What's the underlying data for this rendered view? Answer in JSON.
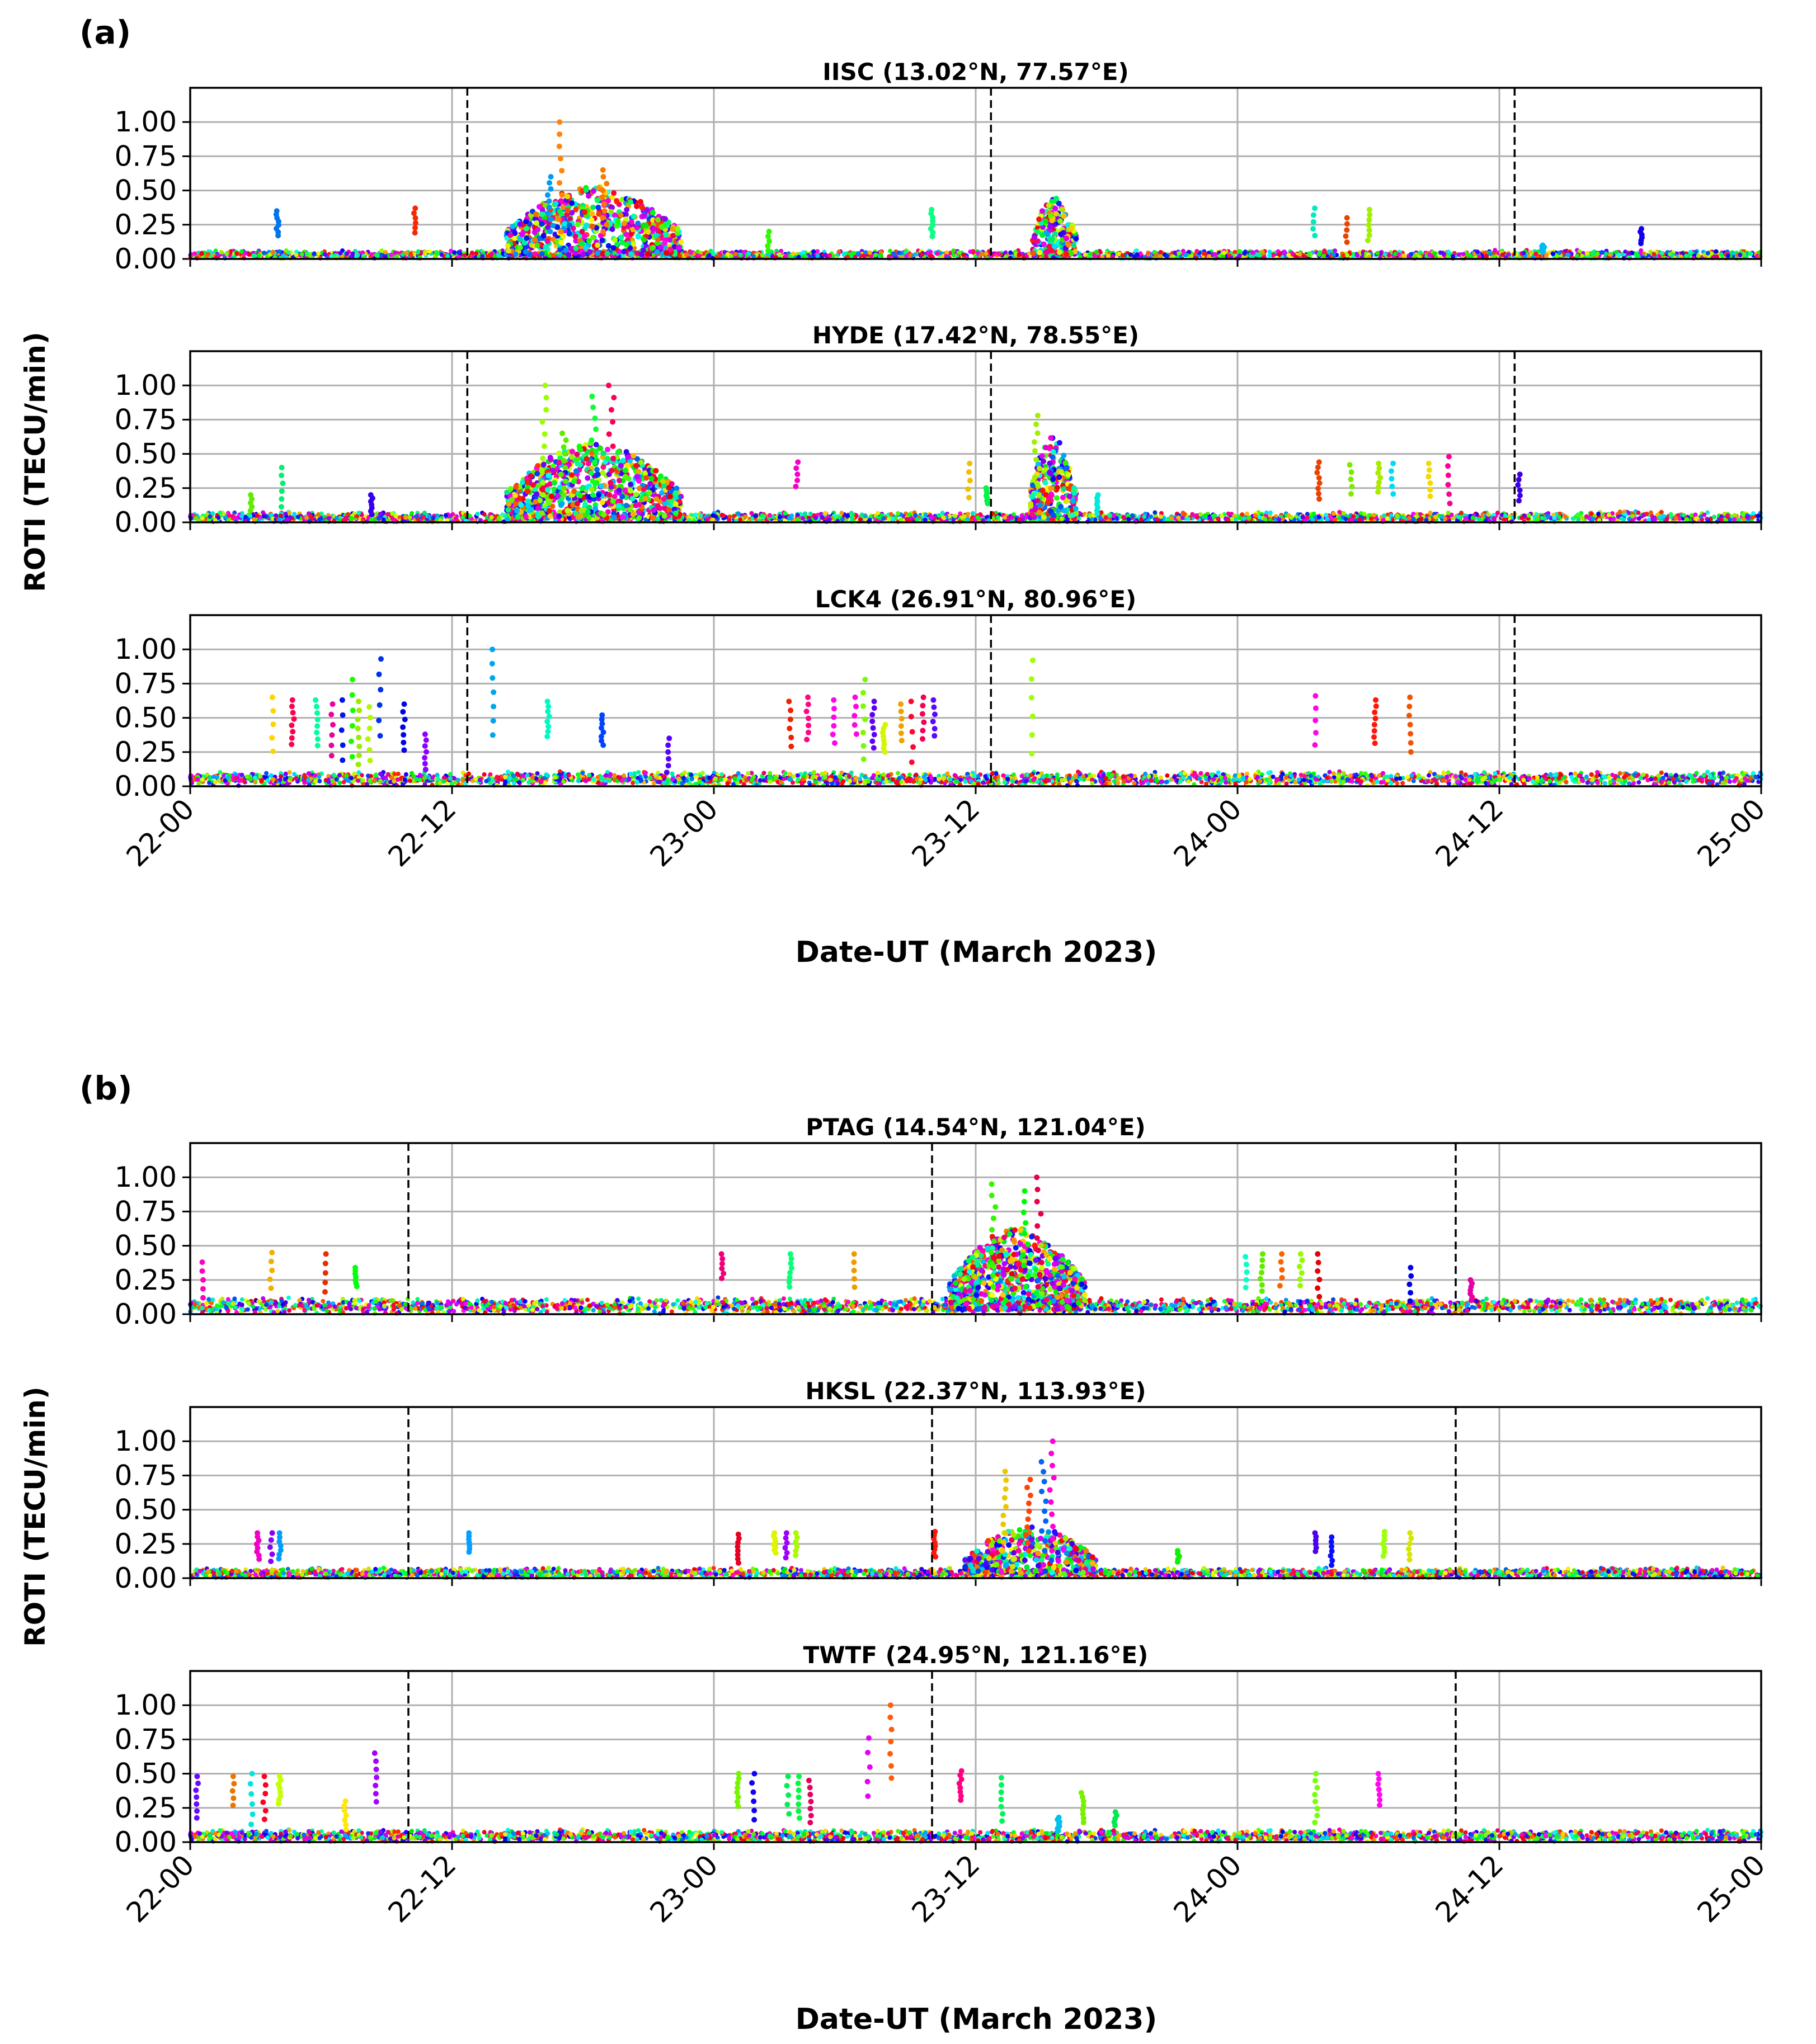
{
  "figure": {
    "panels": [
      {
        "label": "(a)",
        "ylabel": "ROTI (TECU/min)",
        "xlabel": "Date-UT (March 2023)"
      },
      {
        "label": "(b)",
        "ylabel": "ROTI (TECU/min)",
        "xlabel": "Date-UT (March 2023)"
      }
    ]
  },
  "chart_data": [
    {
      "type": "scatter",
      "panel": "a",
      "title": "IISC (13.02°N, 77.57°E)",
      "xlim": [
        0,
        72
      ],
      "ylim": [
        0,
        1.25
      ],
      "grid": true,
      "x_ticks": [
        0,
        12,
        24,
        36,
        48,
        60,
        72
      ],
      "x_tick_labels": [
        "22-00",
        "22-12",
        "23-00",
        "23-12",
        "24-00",
        "24-12",
        "25-00"
      ],
      "y_ticks": [
        0,
        0.25,
        0.5,
        0.75,
        1.0
      ],
      "y_tick_labels": [
        "0.00",
        "0.25",
        "0.50",
        "0.75",
        "1.00"
      ],
      "dashed_lines_x": [
        12.7,
        36.7,
        60.7
      ],
      "baseline": {
        "level": 0.03,
        "spread": 0.025,
        "rise": [
          [
            60,
            72,
            0.03
          ]
        ]
      },
      "bursts": [
        {
          "x": [
            14.5,
            22.5
          ],
          "max": 0.5,
          "count": 700,
          "spikes": [
            [
              17,
              1.0
            ],
            [
              19,
              0.65
            ],
            [
              16.5,
              0.6
            ]
          ]
        },
        {
          "x": [
            38.6,
            40.6
          ],
          "max": 0.42,
          "count": 220,
          "spikes": []
        }
      ],
      "columns": [
        [
          4,
          0.35
        ],
        [
          10.3,
          0.37
        ],
        [
          26.5,
          0.2
        ],
        [
          34,
          0.36
        ],
        [
          51.5,
          0.37
        ],
        [
          53,
          0.3
        ],
        [
          54,
          0.36
        ],
        [
          62,
          0.1
        ],
        [
          66.5,
          0.22
        ]
      ]
    },
    {
      "type": "scatter",
      "panel": "a",
      "title": "HYDE (17.42°N, 78.55°E)",
      "xlim": [
        0,
        72
      ],
      "ylim": [
        0,
        1.25
      ],
      "grid": true,
      "x_ticks": [
        0,
        12,
        24,
        36,
        48,
        60,
        72
      ],
      "x_tick_labels": [
        "22-00",
        "22-12",
        "23-00",
        "23-12",
        "24-00",
        "24-12",
        "25-00"
      ],
      "y_ticks": [
        0,
        0.25,
        0.5,
        0.75,
        1.0
      ],
      "y_tick_labels": [
        "0.00",
        "0.25",
        "0.50",
        "0.75",
        "1.00"
      ],
      "dashed_lines_x": [
        12.7,
        36.7,
        60.7
      ],
      "baseline": {
        "level": 0.035,
        "spread": 0.03,
        "rise": [
          [
            62,
            70,
            0.05
          ]
        ]
      },
      "bursts": [
        {
          "x": [
            14.5,
            22.5
          ],
          "max": 0.55,
          "count": 750,
          "spikes": [
            [
              16.2,
              1.0
            ],
            [
              19.3,
              1.0
            ],
            [
              17.1,
              0.65
            ],
            [
              18.5,
              0.92
            ]
          ]
        },
        {
          "x": [
            38.5,
            40.6
          ],
          "max": 0.6,
          "count": 240,
          "spikes": [
            [
              38.8,
              0.78
            ]
          ]
        }
      ],
      "columns": [
        [
          2.8,
          0.2
        ],
        [
          4.2,
          0.4
        ],
        [
          8.3,
          0.2
        ],
        [
          27.8,
          0.44
        ],
        [
          35.7,
          0.43
        ],
        [
          36.5,
          0.25
        ],
        [
          41.6,
          0.2
        ],
        [
          51.7,
          0.44
        ],
        [
          53.2,
          0.42
        ],
        [
          54.5,
          0.43
        ],
        [
          55.1,
          0.43
        ],
        [
          56.8,
          0.43
        ],
        [
          57.7,
          0.48
        ],
        [
          60.9,
          0.35
        ]
      ]
    },
    {
      "type": "scatter",
      "panel": "a",
      "title": "LCK4 (26.91°N, 80.96°E)",
      "xlim": [
        0,
        72
      ],
      "ylim": [
        0,
        1.25
      ],
      "grid": true,
      "x_ticks": [
        0,
        12,
        24,
        36,
        48,
        60,
        72
      ],
      "x_tick_labels": [
        "22-00",
        "22-12",
        "23-00",
        "23-12",
        "24-00",
        "24-12",
        "25-00"
      ],
      "y_ticks": [
        0,
        0.25,
        0.5,
        0.75,
        1.0
      ],
      "y_tick_labels": [
        "0.00",
        "0.25",
        "0.50",
        "0.75",
        "1.00"
      ],
      "dashed_lines_x": [
        12.7,
        36.7,
        60.7
      ],
      "baseline": {
        "level": 0.055,
        "spread": 0.04,
        "rise": []
      },
      "bursts": [],
      "columns": [
        [
          3.8,
          0.65
        ],
        [
          4.7,
          0.63
        ],
        [
          5.8,
          0.63
        ],
        [
          6.5,
          0.6
        ],
        [
          7.0,
          0.63
        ],
        [
          7.4,
          0.78
        ],
        [
          7.7,
          0.62
        ],
        [
          8.2,
          0.58
        ],
        [
          8.7,
          0.93
        ],
        [
          9.8,
          0.6
        ],
        [
          10.8,
          0.38
        ],
        [
          13.9,
          1.0
        ],
        [
          16.4,
          0.62
        ],
        [
          18.9,
          0.52
        ],
        [
          21.9,
          0.35
        ],
        [
          27.5,
          0.62
        ],
        [
          28.3,
          0.65
        ],
        [
          29.5,
          0.63
        ],
        [
          30.5,
          0.65
        ],
        [
          30.9,
          0.78
        ],
        [
          31.3,
          0.62
        ],
        [
          31.8,
          0.45
        ],
        [
          32.6,
          0.6
        ],
        [
          33.1,
          0.62
        ],
        [
          33.6,
          0.65
        ],
        [
          34.1,
          0.63
        ],
        [
          38.6,
          0.92
        ],
        [
          51.6,
          0.66
        ],
        [
          54.3,
          0.63
        ],
        [
          55.9,
          0.65
        ]
      ]
    },
    {
      "type": "scatter",
      "panel": "b",
      "title": "PTAG (14.54°N, 121.04°E)",
      "xlim": [
        0,
        72
      ],
      "ylim": [
        0,
        1.25
      ],
      "grid": true,
      "x_ticks": [
        0,
        12,
        24,
        36,
        48,
        60,
        72
      ],
      "x_tick_labels": [
        "22-00",
        "22-12",
        "23-00",
        "23-12",
        "24-00",
        "24-12",
        "25-00"
      ],
      "y_ticks": [
        0,
        0.25,
        0.5,
        0.75,
        1.0
      ],
      "y_tick_labels": [
        "0.00",
        "0.25",
        "0.50",
        "0.75",
        "1.00"
      ],
      "dashed_lines_x": [
        10.0,
        34.0,
        58.0
      ],
      "baseline": {
        "level": 0.06,
        "spread": 0.045,
        "rise": []
      },
      "bursts": [
        {
          "x": [
            34.8,
            41.0
          ],
          "max": 0.6,
          "count": 800,
          "spikes": [
            [
              36.8,
              0.95
            ],
            [
              38.3,
              0.9
            ],
            [
              38.9,
              1.0
            ]
          ]
        }
      ],
      "columns": [
        [
          0.6,
          0.38
        ],
        [
          3.7,
          0.45
        ],
        [
          6.2,
          0.44
        ],
        [
          7.6,
          0.34
        ],
        [
          24.4,
          0.44
        ],
        [
          27.5,
          0.44
        ],
        [
          30.4,
          0.44
        ],
        [
          48.4,
          0.42
        ],
        [
          49.1,
          0.44
        ],
        [
          50.0,
          0.44
        ],
        [
          50.9,
          0.44
        ],
        [
          51.7,
          0.44
        ],
        [
          55.9,
          0.34
        ],
        [
          58.7,
          0.25
        ]
      ]
    },
    {
      "type": "scatter",
      "panel": "b",
      "title": "HKSL (22.37°N, 113.93°E)",
      "xlim": [
        0,
        72
      ],
      "ylim": [
        0,
        1.25
      ],
      "grid": true,
      "x_ticks": [
        0,
        12,
        24,
        36,
        48,
        60,
        72
      ],
      "x_tick_labels": [
        "22-00",
        "22-12",
        "23-00",
        "23-12",
        "24-00",
        "24-12",
        "25-00"
      ],
      "y_ticks": [
        0,
        0.25,
        0.5,
        0.75,
        1.0
      ],
      "y_tick_labels": [
        "0.00",
        "0.25",
        "0.50",
        "0.75",
        "1.00"
      ],
      "dashed_lines_x": [
        10.0,
        34.0,
        58.0
      ],
      "baseline": {
        "level": 0.035,
        "spread": 0.03,
        "rise": [
          [
            60,
            72,
            0.045
          ]
        ]
      },
      "bursts": [
        {
          "x": [
            35.5,
            41.5
          ],
          "max": 0.35,
          "count": 400,
          "spikes": [
            [
              37.3,
              0.78
            ],
            [
              38.4,
              0.72
            ],
            [
              39.1,
              0.85
            ],
            [
              39.5,
              1.0
            ]
          ]
        }
      ],
      "columns": [
        [
          3.1,
          0.33
        ],
        [
          3.7,
          0.33
        ],
        [
          4.1,
          0.33
        ],
        [
          12.8,
          0.33
        ],
        [
          25.1,
          0.32
        ],
        [
          26.8,
          0.33
        ],
        [
          27.3,
          0.33
        ],
        [
          27.8,
          0.33
        ],
        [
          34.1,
          0.34
        ],
        [
          45.3,
          0.2
        ],
        [
          51.6,
          0.33
        ],
        [
          52.3,
          0.3
        ],
        [
          54.7,
          0.34
        ],
        [
          55.9,
          0.33
        ]
      ]
    },
    {
      "type": "scatter",
      "panel": "b",
      "title": "TWTF (24.95°N, 121.16°E)",
      "xlim": [
        0,
        72
      ],
      "ylim": [
        0,
        1.25
      ],
      "grid": true,
      "x_ticks": [
        0,
        12,
        24,
        36,
        48,
        60,
        72
      ],
      "x_tick_labels": [
        "22-00",
        "22-12",
        "23-00",
        "23-12",
        "24-00",
        "24-12",
        "25-00"
      ],
      "y_ticks": [
        0,
        0.25,
        0.5,
        0.75,
        1.0
      ],
      "y_tick_labels": [
        "0.00",
        "0.25",
        "0.50",
        "0.75",
        "1.00"
      ],
      "dashed_lines_x": [
        10.0,
        34.0,
        58.0
      ],
      "baseline": {
        "level": 0.045,
        "spread": 0.035,
        "rise": []
      },
      "bursts": [],
      "columns": [
        [
          0.3,
          0.48
        ],
        [
          2.0,
          0.48
        ],
        [
          2.8,
          0.5
        ],
        [
          3.4,
          0.48
        ],
        [
          4.1,
          0.48
        ],
        [
          7.1,
          0.3
        ],
        [
          8.5,
          0.65
        ],
        [
          25.1,
          0.5
        ],
        [
          25.8,
          0.5
        ],
        [
          27.4,
          0.48
        ],
        [
          27.9,
          0.48
        ],
        [
          28.4,
          0.45
        ],
        [
          31.1,
          0.76
        ],
        [
          32.1,
          1.0
        ],
        [
          35.3,
          0.52
        ],
        [
          37.2,
          0.47
        ],
        [
          39.8,
          0.18
        ],
        [
          40.9,
          0.36
        ],
        [
          42.4,
          0.22
        ],
        [
          51.6,
          0.5
        ],
        [
          54.5,
          0.5
        ]
      ]
    }
  ]
}
